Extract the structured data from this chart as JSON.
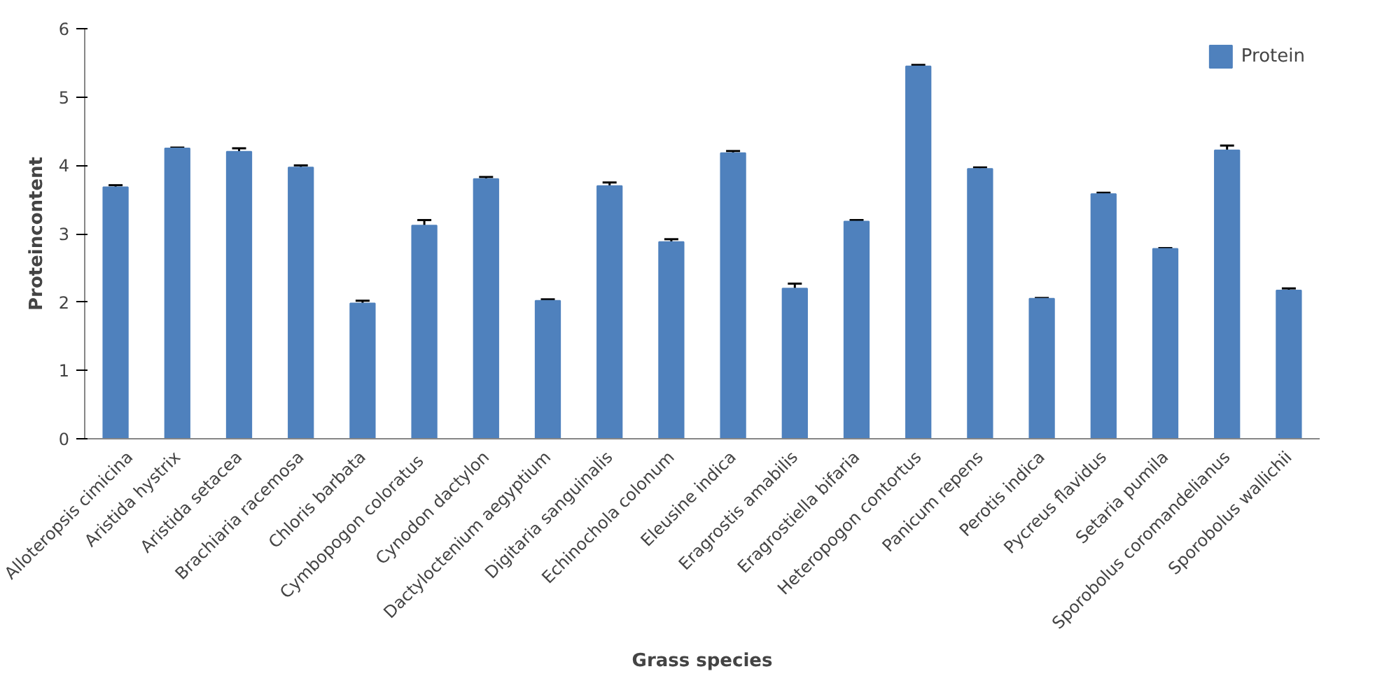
{
  "chart_data": {
    "type": "bar",
    "xlabel": "Grass species",
    "ylabel": "Proteincontent",
    "categories": [
      "Alloteropsis cimicina",
      "Aristida hystrix",
      "Aristida setacea",
      "Brachiaria racemosa",
      "Chloris barbata",
      "Cymbopogon  coloratus",
      "Cynodon dactylon",
      "Dactyloctenium aegyptium",
      "Digitaria sanguinalis",
      "Echinochola colonum",
      "Eleusine indica",
      "Eragrostis amabilis",
      "Eragrostiella bifaria",
      "Heteropogon contortus",
      "Panicum repens",
      "Perotis indica",
      "Pycreus flavidus",
      "Setaria pumila",
      "Sporobolus coromandelianus",
      "Sporobolus wallichii"
    ],
    "series": [
      {
        "name": "Protein",
        "color": "#4f81bd",
        "values": [
          3.68,
          4.25,
          4.2,
          3.97,
          1.98,
          3.12,
          3.8,
          2.02,
          3.7,
          2.88,
          4.18,
          2.2,
          3.18,
          5.45,
          3.95,
          2.05,
          3.58,
          2.78,
          4.22,
          2.17
        ],
        "errors": [
          0.03,
          0.01,
          0.05,
          0.03,
          0.04,
          0.08,
          0.03,
          0.02,
          0.05,
          0.04,
          0.03,
          0.07,
          0.02,
          0.02,
          0.02,
          0.01,
          0.02,
          0.01,
          0.07,
          0.03
        ]
      }
    ],
    "ylim": [
      0,
      6
    ],
    "yticks": [
      0,
      1,
      2,
      3,
      4,
      5,
      6
    ],
    "grid": false,
    "legend": "top right"
  }
}
